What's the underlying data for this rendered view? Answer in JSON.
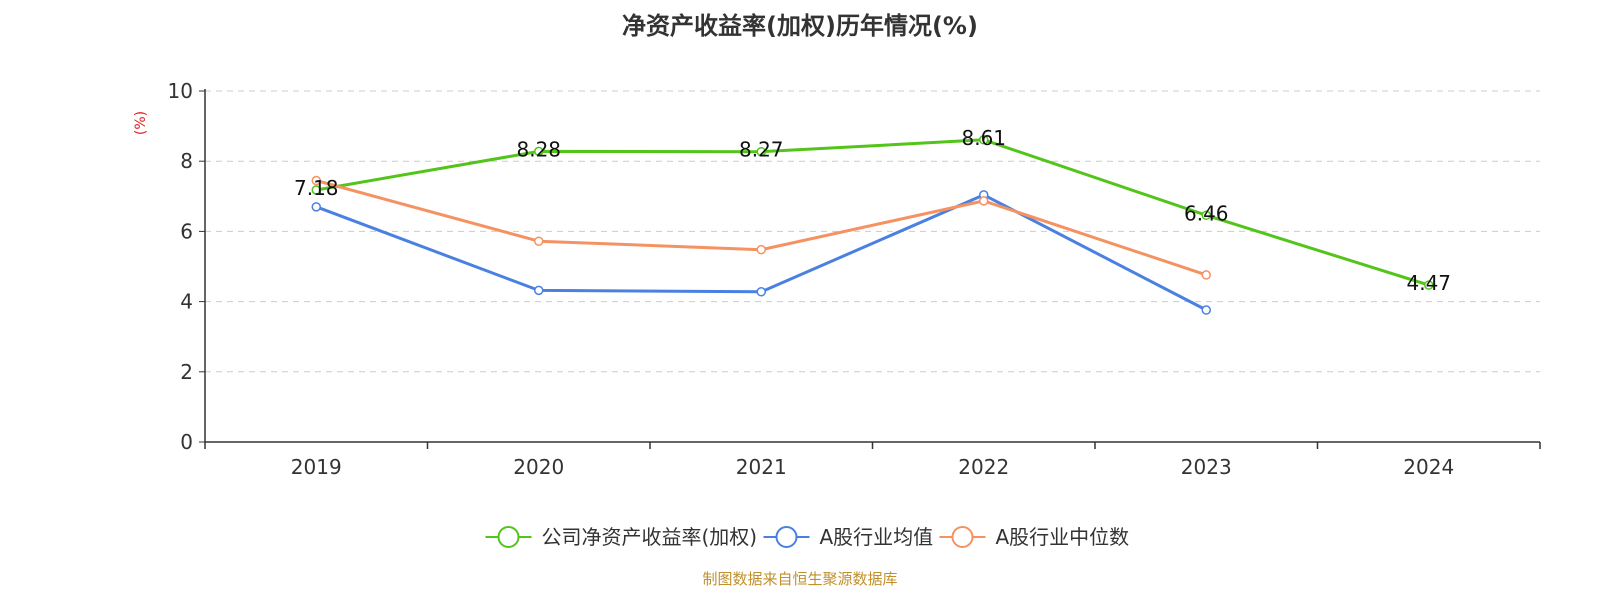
{
  "chart_data": {
    "type": "line",
    "title": "净资产收益率(加权)历年情况(%)",
    "ylabel": "(%)",
    "xlabel": "",
    "categories": [
      "2019",
      "2020",
      "2021",
      "2022",
      "2023",
      "2024"
    ],
    "ylim": [
      0,
      10
    ],
    "yticks": [
      "0",
      "2",
      "4",
      "6",
      "8",
      "10"
    ],
    "grid": true,
    "legend_position": "bottom",
    "series": [
      {
        "name": "公司净资产收益率(加权)",
        "color": "#52c41a",
        "values": [
          7.18,
          8.28,
          8.27,
          8.61,
          6.46,
          4.47
        ],
        "labels": [
          "7.18",
          "8.28",
          "8.27",
          "8.61",
          "6.46",
          "4.47"
        ]
      },
      {
        "name": "A股行业均值",
        "color": "#4a80e0",
        "values": [
          6.7,
          4.32,
          4.28,
          7.04,
          3.76,
          null
        ]
      },
      {
        "name": "A股行业中位数",
        "color": "#f59262",
        "values": [
          7.45,
          5.72,
          5.48,
          6.87,
          4.76,
          null
        ]
      }
    ]
  },
  "footer": {
    "source": "制图数据来自恒生聚源数据库"
  }
}
